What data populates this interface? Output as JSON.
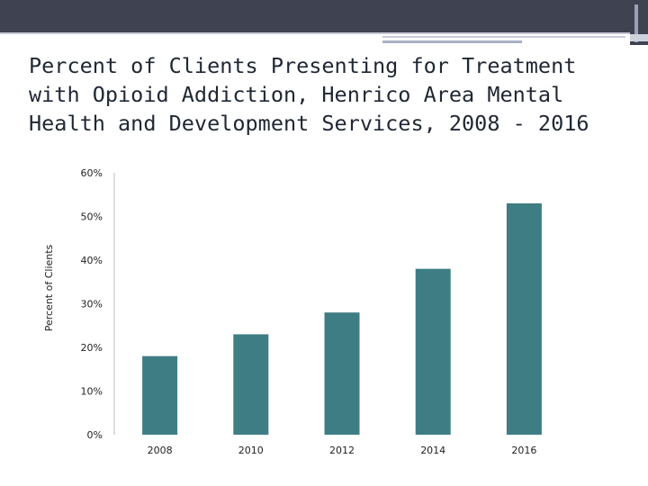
{
  "slide": {
    "title": "Percent of Clients Presenting for Treatment with Opioid Addiction, Henrico Area Mental Health and Development Services, 2008 - 2016",
    "accent_color": "#3f4251"
  },
  "chart_data": {
    "type": "bar",
    "title": "",
    "xlabel": "",
    "ylabel": "Percent of Clients",
    "categories": [
      "2008",
      "2010",
      "2012",
      "2014",
      "2016"
    ],
    "values": [
      18,
      23,
      28,
      38,
      53
    ],
    "ylim": [
      0,
      60
    ],
    "yticks": [
      0,
      10,
      20,
      30,
      40,
      50,
      60
    ],
    "ytick_labels": [
      "0%",
      "10%",
      "20%",
      "30%",
      "40%",
      "50%",
      "60%"
    ],
    "bar_color": "#3f7d84",
    "grid": false,
    "legend": "none"
  }
}
